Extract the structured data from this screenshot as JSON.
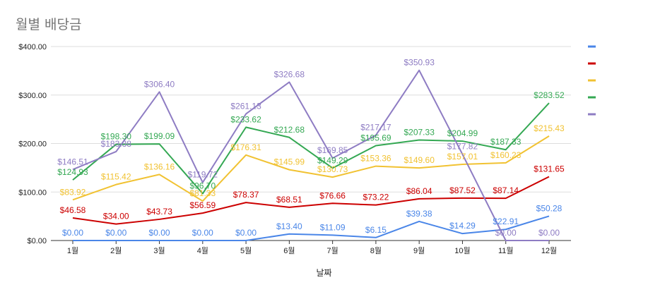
{
  "chart_title": "월별 배당금",
  "chart_data": {
    "type": "line",
    "title": "월별 배당금",
    "xlabel": "날짜",
    "ylabel": "",
    "ylim": [
      0,
      400
    ],
    "yticks": [
      "$0.00",
      "$100.00",
      "$200.00",
      "$300.00",
      "$400.00"
    ],
    "categories": [
      "1월",
      "2월",
      "3월",
      "4월",
      "5월",
      "6월",
      "7월",
      "8월",
      "9월",
      "10월",
      "11월",
      "12월"
    ],
    "grid": true,
    "legend_position": "right",
    "series": [
      {
        "color": "#4a86e8",
        "values": [
          0,
          0,
          0,
          0,
          0,
          13.4,
          11.09,
          6.15,
          39.38,
          14.29,
          22.91,
          50.28
        ],
        "labels": [
          "$0.00",
          "$0.00",
          "$0.00",
          "$0.00",
          "$0.00",
          "$13.40",
          "$11.09",
          "$6.15",
          "$39.38",
          "$14.29",
          "$22.91",
          "$50.28"
        ]
      },
      {
        "color": "#cc0000",
        "values": [
          46.58,
          34.0,
          43.73,
          56.59,
          78.37,
          68.51,
          76.66,
          73.22,
          86.04,
          87.52,
          87.14,
          131.65
        ],
        "labels": [
          "$46.58",
          "$34.00",
          "$43.73",
          "$56.59",
          "$78.37",
          "$68.51",
          "$76.66",
          "$73.22",
          "$86.04",
          "$87.52",
          "$87.14",
          "$131.65"
        ]
      },
      {
        "color": "#f1c232",
        "values": [
          83.92,
          115.42,
          136.16,
          81.33,
          176.31,
          145.99,
          130.73,
          153.36,
          149.6,
          157.01,
          160.23,
          215.43
        ],
        "labels": [
          "$83.92",
          "$115.42",
          "$136.16",
          "$81.33",
          "$176.31",
          "$145.99",
          "$130.73",
          "$153.36",
          "$149.60",
          "$157.01",
          "$160.23",
          "$215.43"
        ]
      },
      {
        "color": "#34a853",
        "values": [
          124.93,
          198.3,
          199.09,
          96.7,
          233.62,
          212.68,
          149.29,
          195.69,
          207.33,
          204.99,
          187.33,
          283.52
        ],
        "labels": [
          "$124.93",
          "$198.30",
          "$199.09",
          "$96.70",
          "$233.62",
          "$212.68",
          "$149.29",
          "$195.69",
          "$207.33",
          "$204.99",
          "$187.33",
          "$283.52"
        ]
      },
      {
        "color": "#8e7cc3",
        "values": [
          146.51,
          183.38,
          306.4,
          119.72,
          261.13,
          326.68,
          169.85,
          217.17,
          350.93,
          177.82,
          0,
          0
        ],
        "labels": [
          "$146.51",
          "$183.38",
          "$306.40",
          "$119.72",
          "$261.13",
          "$326.68",
          "$169.85",
          "$217.17",
          "$350.93",
          "$177.82",
          "$0.00",
          "$0.00"
        ]
      }
    ]
  }
}
